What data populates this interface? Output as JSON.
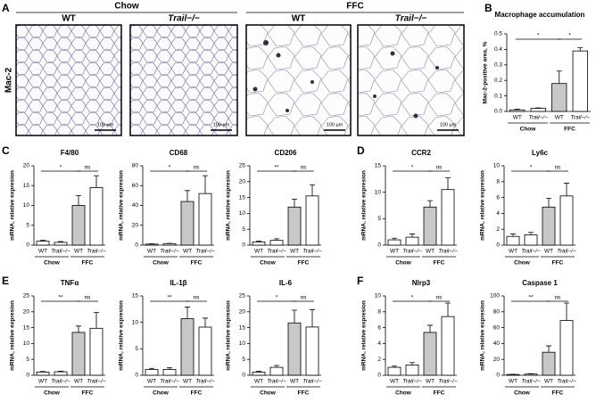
{
  "figure": {
    "panel_letters": [
      "A",
      "B",
      "C",
      "D",
      "E",
      "F"
    ],
    "panel_a": {
      "row_label": "Mac-2",
      "groups": [
        "Chow",
        "FFC"
      ],
      "image_labels": [
        "WT",
        "Trail−/−",
        "WT",
        "Trail−/−"
      ],
      "scale_bar_labels": [
        "100 µm",
        "100 µm",
        "100 µm",
        "100 µm"
      ]
    }
  },
  "chart_data": [
    {
      "type": "bar",
      "title": "Macrophage accumulation",
      "ylabel": "Mac-2-positive area, %",
      "categories": [
        "WT",
        "Trail−/−",
        "WT",
        "Trail−/−"
      ],
      "groups": [
        "Chow",
        "FFC"
      ],
      "values": [
        0.01,
        0.02,
        0.18,
        0.39
      ],
      "errors": [
        0.005,
        0.003,
        0.08,
        0.02
      ],
      "colors": [
        "#ffffff",
        "#ffffff",
        "#c8c8c8",
        "#ffffff"
      ],
      "ylim": [
        0,
        0.5
      ],
      "yticks": [
        {
          "value": 0,
          "label": "0.0"
        },
        0.1,
        0.2,
        0.3,
        0.4,
        0.5
      ],
      "annotations": [
        "*",
        "*"
      ]
    },
    {
      "type": "bar",
      "title": "F4/80",
      "ylabel": "mRNA, relative expresion",
      "categories": [
        "WT",
        "Trail−/−",
        "WT",
        "Trail−/−"
      ],
      "groups": [
        "Chow",
        "FFC"
      ],
      "values": [
        1,
        0.7,
        10,
        14.5
      ],
      "errors": [
        0.2,
        0.2,
        2.5,
        3
      ],
      "colors": [
        "#ffffff",
        "#ffffff",
        "#c8c8c8",
        "#ffffff"
      ],
      "ylim": [
        0,
        20
      ],
      "yticks": [
        0,
        5,
        10,
        15,
        20
      ],
      "annotations": [
        "*",
        "ns"
      ]
    },
    {
      "type": "bar",
      "title": "CD68",
      "ylabel": "mRNA, relative expresion",
      "categories": [
        "WT",
        "Trail−/−",
        "WT",
        "Trail−/−"
      ],
      "groups": [
        "Chow",
        "FFC"
      ],
      "values": [
        1,
        1.5,
        44,
        52
      ],
      "errors": [
        0.3,
        0.3,
        11,
        18
      ],
      "colors": [
        "#ffffff",
        "#ffffff",
        "#c8c8c8",
        "#ffffff"
      ],
      "ylim": [
        0,
        80
      ],
      "yticks": [
        0,
        20,
        40,
        60,
        80
      ],
      "annotations": [
        "*",
        "ns"
      ]
    },
    {
      "type": "bar",
      "title": "CD206",
      "ylabel": "mRNA, relative expresion",
      "categories": [
        "WT",
        "Trail−/−",
        "WT",
        "Trail−/−"
      ],
      "groups": [
        "Chow",
        "FFC"
      ],
      "values": [
        1,
        1.5,
        12,
        15.5
      ],
      "errors": [
        0.3,
        0.5,
        2.5,
        3.5
      ],
      "colors": [
        "#ffffff",
        "#ffffff",
        "#c8c8c8",
        "#ffffff"
      ],
      "ylim": [
        0,
        25
      ],
      "yticks": [
        0,
        5,
        10,
        15,
        20,
        25
      ],
      "annotations": [
        "**",
        "ns"
      ]
    },
    {
      "type": "bar",
      "title": "CCR2",
      "ylabel": "mRNA, relative expresion",
      "categories": [
        "WT",
        "Trail−/−",
        "WT",
        "Trail−/−"
      ],
      "groups": [
        "Chow",
        "FFC"
      ],
      "values": [
        1,
        1.5,
        7.2,
        10.5
      ],
      "errors": [
        0.3,
        0.6,
        1.2,
        2.2
      ],
      "colors": [
        "#ffffff",
        "#ffffff",
        "#c8c8c8",
        "#ffffff"
      ],
      "ylim": [
        0,
        15
      ],
      "yticks": [
        0,
        5,
        10,
        15
      ],
      "annotations": [
        "*",
        "ns"
      ]
    },
    {
      "type": "bar",
      "title": "Ly6c",
      "ylabel": "mRNA, relative expresion",
      "categories": [
        "WT",
        "Trail−/−",
        "WT",
        "Trail−/−"
      ],
      "groups": [
        "Chow",
        "FFC"
      ],
      "values": [
        1.1,
        1.3,
        4.8,
        6.2
      ],
      "errors": [
        0.3,
        0.3,
        1.1,
        1.6
      ],
      "colors": [
        "#ffffff",
        "#ffffff",
        "#c8c8c8",
        "#ffffff"
      ],
      "ylim": [
        0,
        10
      ],
      "yticks": [
        0,
        2,
        4,
        6,
        8,
        10
      ],
      "annotations": [
        "*",
        "ns"
      ]
    },
    {
      "type": "bar",
      "title": "TNFα",
      "ylabel": "mRNA, relative expresion",
      "categories": [
        "WT",
        "Trail−/−",
        "WT",
        "Trail−/−"
      ],
      "groups": [
        "Chow",
        "FFC"
      ],
      "values": [
        1,
        1.1,
        13.5,
        14.8
      ],
      "errors": [
        0.2,
        0.2,
        2,
        5
      ],
      "colors": [
        "#ffffff",
        "#ffffff",
        "#c8c8c8",
        "#ffffff"
      ],
      "ylim": [
        0,
        25
      ],
      "yticks": [
        0,
        5,
        10,
        15,
        20,
        25
      ],
      "annotations": [
        "**",
        "ns"
      ]
    },
    {
      "type": "bar",
      "title": "IL-1β",
      "ylabel": "mRNA, relative expresion",
      "categories": [
        "WT",
        "Trail−/−",
        "WT",
        "Trail−/−"
      ],
      "groups": [
        "Chow",
        "FFC"
      ],
      "values": [
        1.1,
        1.1,
        10.7,
        9.1
      ],
      "errors": [
        0.2,
        0.3,
        2.2,
        1.7
      ],
      "colors": [
        "#ffffff",
        "#ffffff",
        "#c8c8c8",
        "#ffffff"
      ],
      "ylim": [
        0,
        15
      ],
      "yticks": [
        0,
        5,
        10,
        15
      ],
      "annotations": [
        "**",
        "ns"
      ]
    },
    {
      "type": "bar",
      "title": "IL-6",
      "ylabel": "mRNA, relative expresion",
      "categories": [
        "WT",
        "Trail−/−",
        "WT",
        "Trail−/−"
      ],
      "groups": [
        "Chow",
        "FFC"
      ],
      "values": [
        1,
        2.5,
        16.5,
        15.2
      ],
      "errors": [
        0.3,
        0.6,
        4,
        5.5
      ],
      "colors": [
        "#ffffff",
        "#ffffff",
        "#c8c8c8",
        "#ffffff"
      ],
      "ylim": [
        0,
        25
      ],
      "yticks": [
        0,
        5,
        10,
        15,
        20,
        25
      ],
      "annotations": [
        "*",
        "ns"
      ]
    },
    {
      "type": "bar",
      "title": "Nlrp3",
      "ylabel": "mRNA, relative expresion",
      "categories": [
        "WT",
        "Trail−/−",
        "WT",
        "Trail−/−"
      ],
      "groups": [
        "Chow",
        "FFC"
      ],
      "values": [
        1,
        1.3,
        5.4,
        7.4
      ],
      "errors": [
        0.15,
        0.3,
        0.9,
        1.7
      ],
      "colors": [
        "#ffffff",
        "#ffffff",
        "#c8c8c8",
        "#ffffff"
      ],
      "ylim": [
        0,
        10
      ],
      "yticks": [
        0,
        2,
        4,
        6,
        8,
        10
      ],
      "annotations": [
        "*",
        "ns"
      ]
    },
    {
      "type": "bar",
      "title": "Caspase 1",
      "ylabel": "mRNA, relative expresion",
      "categories": [
        "WT",
        "Trail−/−",
        "WT",
        "Trail−/−"
      ],
      "groups": [
        "Chow",
        "FFC"
      ],
      "values": [
        1,
        1.5,
        29,
        69
      ],
      "errors": [
        0.3,
        0.5,
        8,
        22
      ],
      "colors": [
        "#ffffff",
        "#ffffff",
        "#c8c8c8",
        "#ffffff"
      ],
      "ylim": [
        0,
        100
      ],
      "yticks": [
        0,
        20,
        40,
        60,
        80,
        100
      ],
      "annotations": [
        "**",
        "ns"
      ]
    }
  ]
}
